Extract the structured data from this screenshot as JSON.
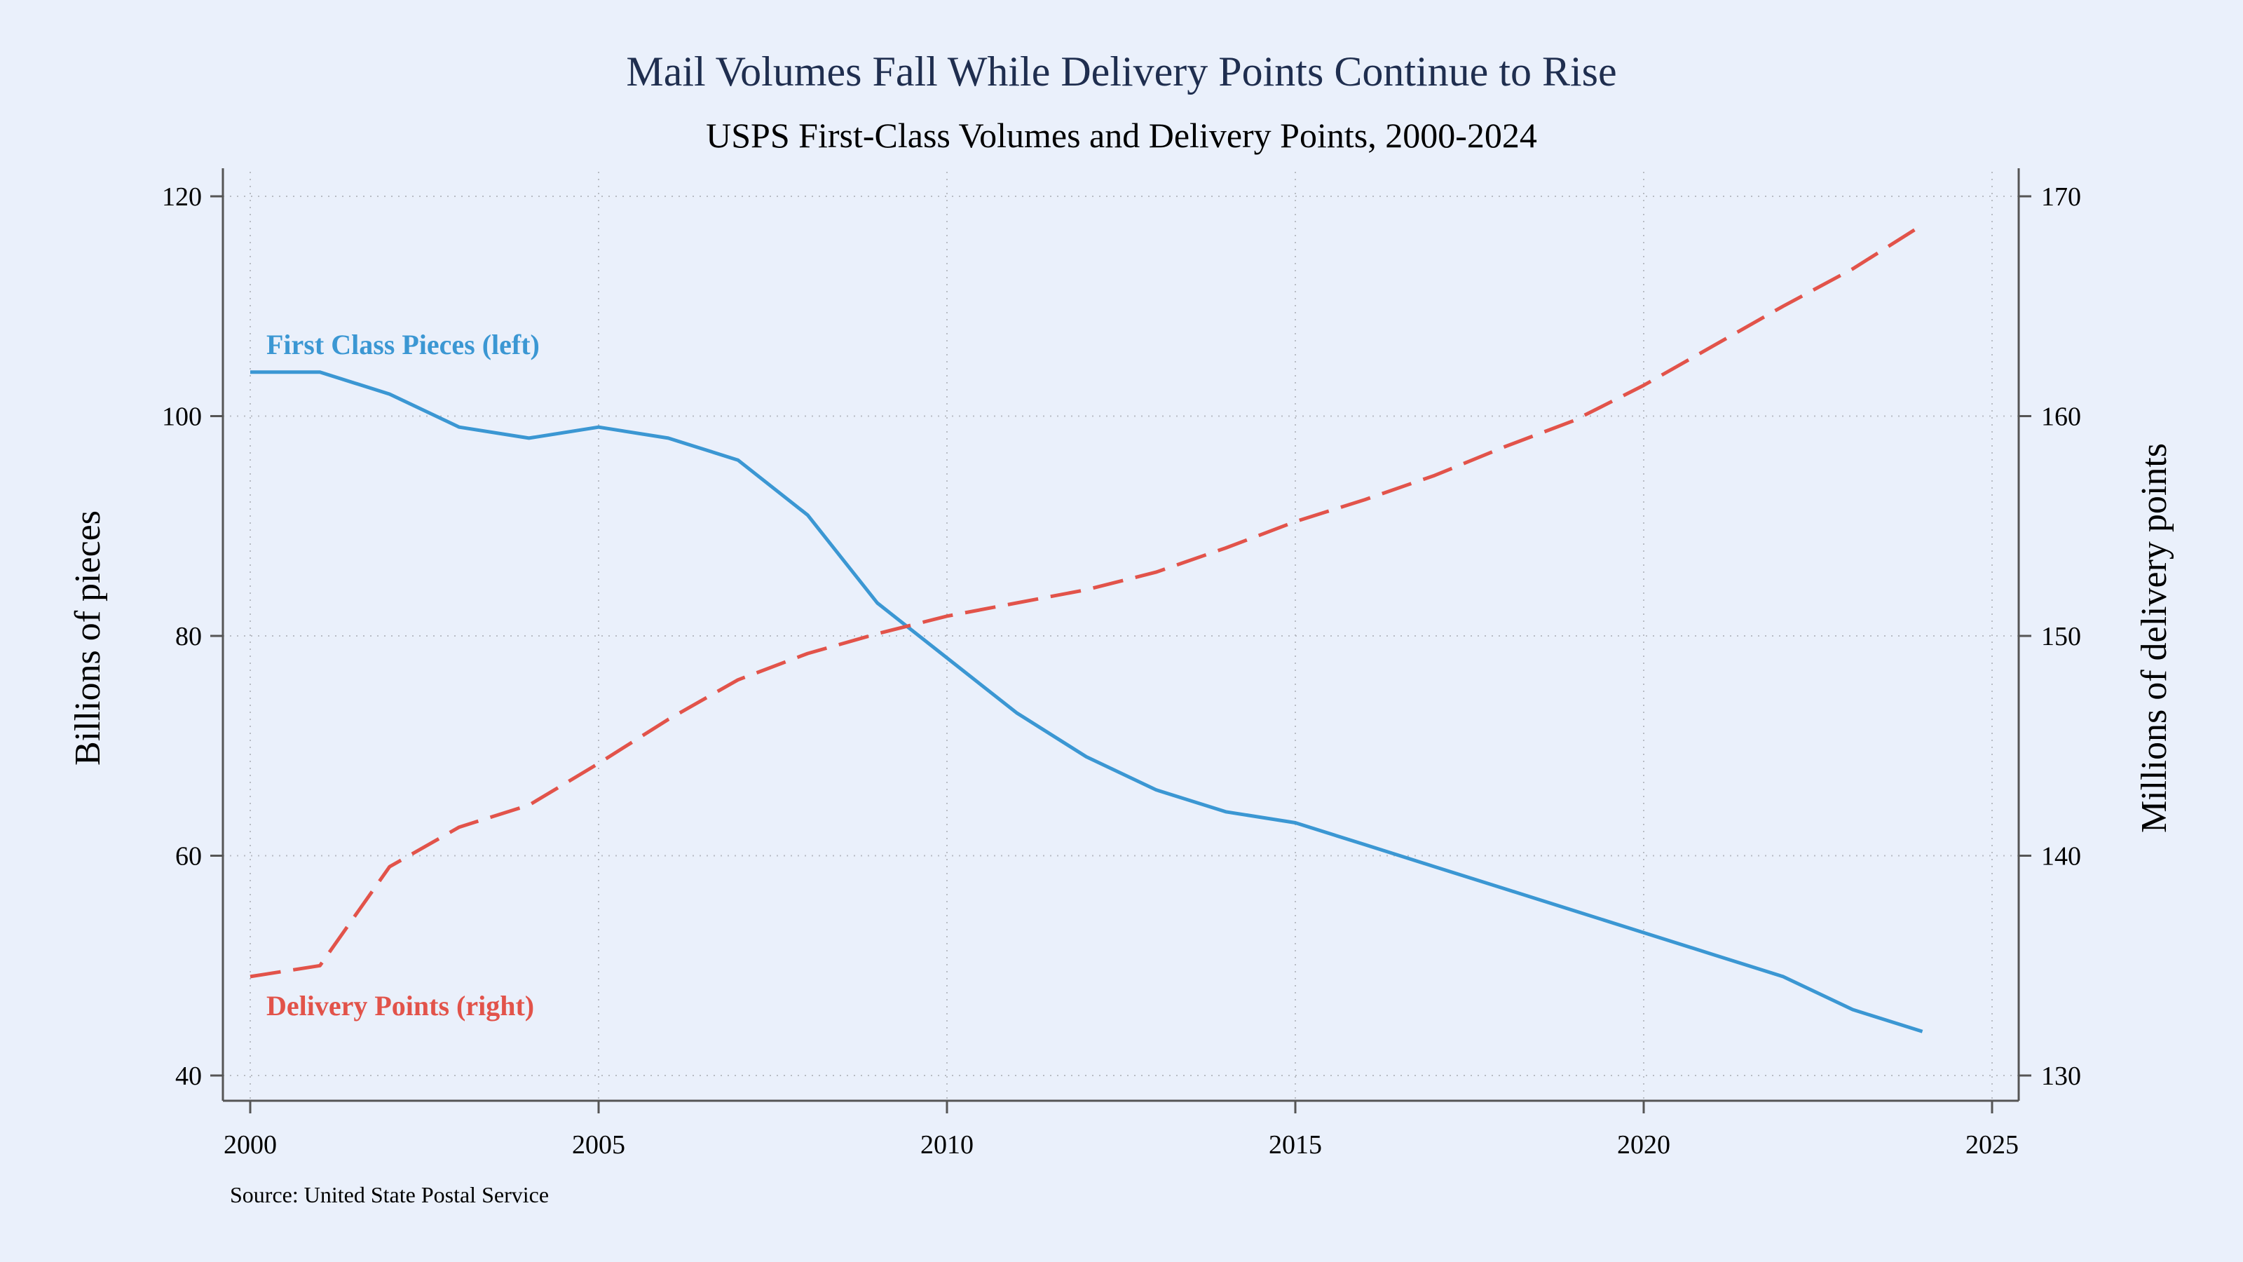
{
  "chart_data": {
    "type": "line",
    "title": "Mail Volumes Fall While Delivery Points Continue to Rise",
    "subtitle": "USPS First-Class Volumes and Delivery Points, 2000-2024",
    "xlabel": "",
    "ylabel_left": "Billions of pieces",
    "ylabel_right": "Millions of delivery points",
    "source": "Source: United State Postal Service",
    "x_range": [
      2000,
      2025
    ],
    "x_ticks": [
      2000,
      2005,
      2010,
      2015,
      2020,
      2025
    ],
    "y_left_range": [
      40,
      120
    ],
    "y_left_ticks": [
      40,
      60,
      80,
      100,
      120
    ],
    "y_right_range": [
      130,
      170
    ],
    "y_right_ticks": [
      130,
      140,
      150,
      160,
      170
    ],
    "grid": true,
    "series": [
      {
        "name": "First Class Pieces (left)",
        "axis": "left",
        "color": "#3b97d3",
        "style": "solid",
        "x": [
          2000,
          2001,
          2002,
          2003,
          2004,
          2005,
          2006,
          2007,
          2008,
          2009,
          2010,
          2011,
          2012,
          2013,
          2014,
          2015,
          2016,
          2017,
          2018,
          2019,
          2020,
          2021,
          2022,
          2023,
          2024
        ],
        "values": [
          104,
          104,
          102,
          99,
          98,
          99,
          98,
          96,
          91,
          83,
          78,
          73,
          69,
          66,
          64,
          63,
          61,
          59,
          57,
          55,
          53,
          51,
          49,
          46,
          44
        ]
      },
      {
        "name": "Delivery Points (right)",
        "axis": "right",
        "color": "#e2534a",
        "style": "dashed",
        "x": [
          2000,
          2001,
          2002,
          2003,
          2004,
          2005,
          2006,
          2007,
          2008,
          2009,
          2010,
          2011,
          2012,
          2013,
          2014,
          2015,
          2016,
          2017,
          2018,
          2019,
          2020,
          2021,
          2022,
          2023,
          2024
        ],
        "values": [
          134.5,
          135,
          139.5,
          141.3,
          142.3,
          144.2,
          146.2,
          148,
          149.2,
          150.1,
          150.9,
          151.5,
          152.1,
          152.9,
          154,
          155.2,
          156.2,
          157.3,
          158.6,
          159.8,
          161.4,
          163.2,
          165,
          166.7,
          168.7
        ]
      }
    ]
  }
}
